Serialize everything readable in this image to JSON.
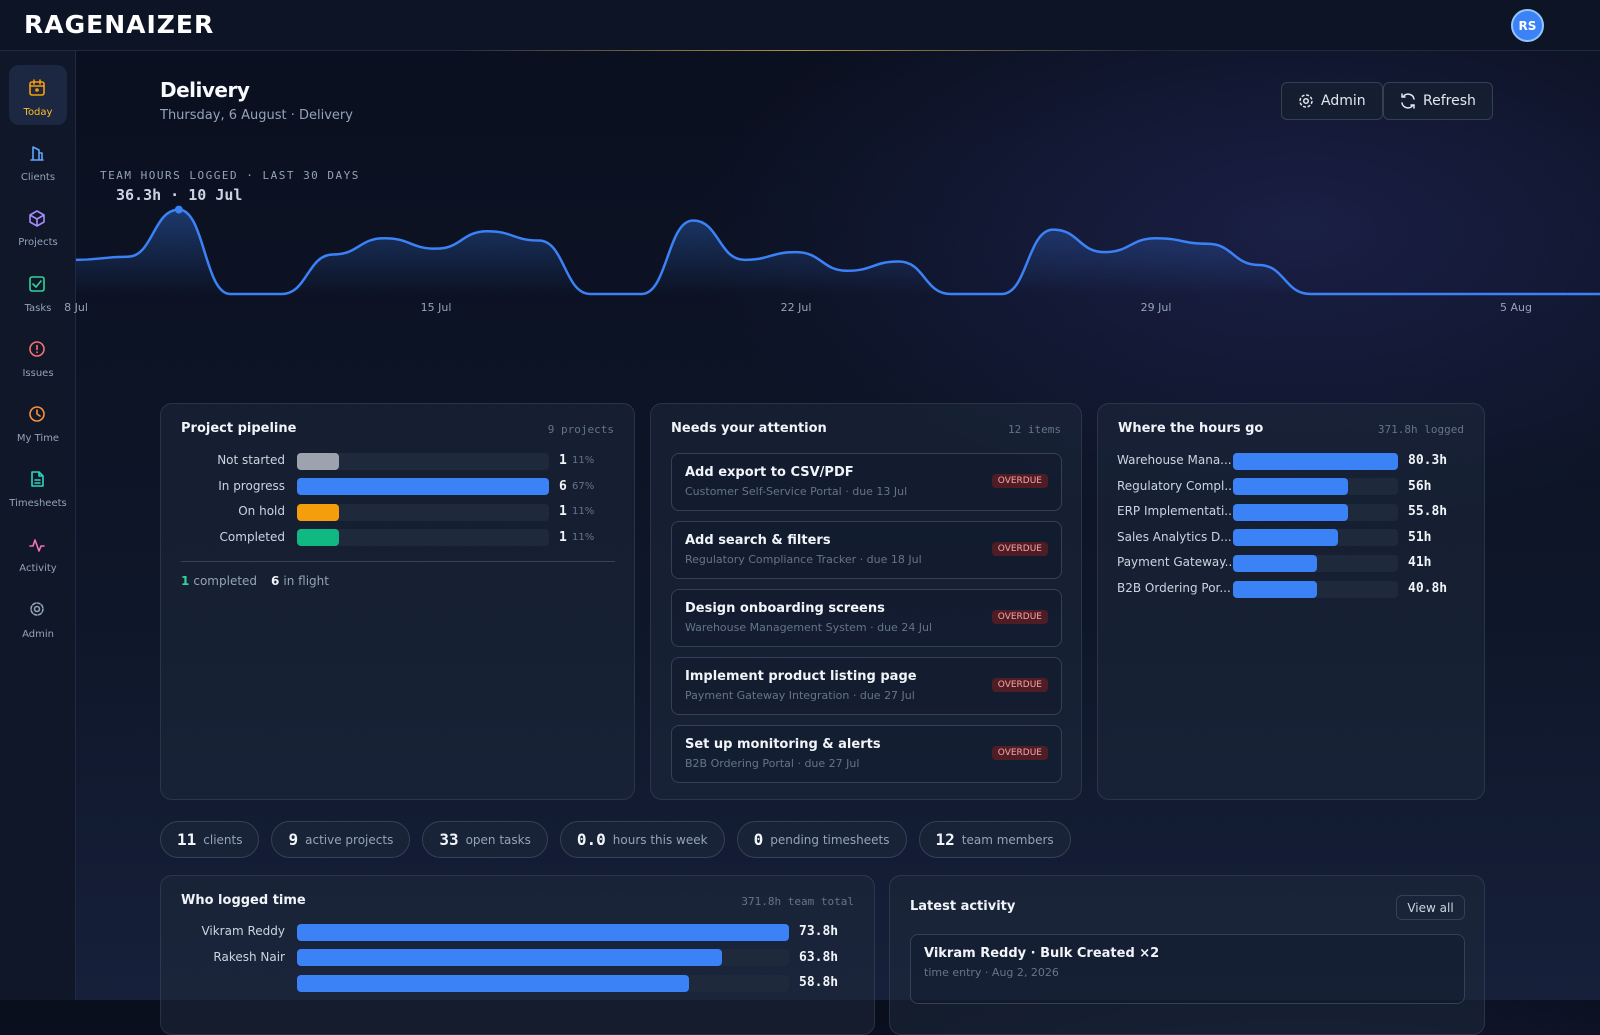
{
  "header": {
    "logo": "RAGENAIZER",
    "avatar": "RS"
  },
  "nav": [
    "Today",
    "Clients",
    "Projects",
    "Tasks",
    "Issues",
    "My Time",
    "Timesheets",
    "Activity",
    "Admin"
  ],
  "page": {
    "title": "Delivery",
    "subtitle": "Thursday, 6 August · Delivery",
    "buttons": [
      "Admin",
      "Refresh"
    ]
  },
  "hours_chart": {
    "type": "area",
    "title": "TEAM HOURS LOGGED · LAST 30 DAYS",
    "annotation": "36.3h · 10 Jul",
    "categories": [
      "8 Jul",
      null,
      null,
      null,
      null,
      null,
      null,
      "15 Jul",
      null,
      null,
      null,
      null,
      null,
      null,
      "22 Jul",
      null,
      null,
      null,
      null,
      null,
      null,
      "29 Jul",
      null,
      null,
      null,
      null,
      null,
      null,
      "5 Aug",
      null
    ],
    "values": [
      14.7,
      16,
      36.3,
      0,
      0,
      17,
      24,
      19.5,
      27,
      23,
      0,
      0,
      31.6,
      14.7,
      18,
      10,
      14,
      0,
      0,
      27.7,
      18,
      24,
      21.6,
      12.5,
      0,
      0,
      0,
      0,
      0,
      0
    ],
    "ylim": [
      0,
      40
    ],
    "color": "#3b82f6"
  },
  "pipeline": {
    "title": "Project pipeline",
    "meta": "9 projects",
    "categories": [
      "Not started",
      "In progress",
      "On hold",
      "Completed"
    ],
    "values": [
      1,
      6,
      1,
      1
    ],
    "colors": [
      "#9ca3af",
      "#3b82f6",
      "#f59e0b",
      "#10b981"
    ],
    "percents": [
      11,
      67,
      11,
      11
    ],
    "percent_labels": [
      "11%",
      "67%",
      "11%",
      "11%"
    ],
    "summary": [
      {
        "value": 1,
        "label": "completed"
      },
      {
        "value": 6,
        "label": "in flight"
      }
    ]
  },
  "attention": {
    "title": "Needs your attention",
    "meta": "12 items",
    "items": [
      {
        "title": "Add export to CSV/PDF",
        "subtitle": "Customer Self-Service Portal · due 13 Jul",
        "badge": "OVERDUE"
      },
      {
        "title": "Add search & filters",
        "subtitle": "Regulatory Compliance Tracker · due 18 Jul",
        "badge": "OVERDUE"
      },
      {
        "title": "Design onboarding screens",
        "subtitle": "Warehouse Management System · due 24 Jul",
        "badge": "OVERDUE"
      },
      {
        "title": "Implement product listing page",
        "subtitle": "Payment Gateway Integration · due 27 Jul",
        "badge": "OVERDUE"
      },
      {
        "title": "Set up monitoring & alerts",
        "subtitle": "B2B Ordering Portal · due 27 Jul",
        "badge": "OVERDUE"
      }
    ]
  },
  "hours_by_project": {
    "title": "Where the hours go",
    "meta": "371.8h logged",
    "categories": [
      "Warehouse Mana...",
      "Regulatory Compl...",
      "ERP Implementati...",
      "Sales Analytics D...",
      "Payment Gateway...",
      "B2B Ordering Por..."
    ],
    "values": [
      80.3,
      56,
      55.8,
      51,
      41,
      40.8
    ],
    "value_labels": [
      "80.3h",
      "56h",
      "55.8h",
      "51h",
      "41h",
      "40.8h"
    ],
    "color": "#3b82f6"
  },
  "stats": [
    {
      "value": 11,
      "label": "clients"
    },
    {
      "value": 9,
      "label": "active projects"
    },
    {
      "value": 33,
      "label": "open tasks"
    },
    {
      "value": 0,
      "value_label": "0.0",
      "label": "hours this week"
    },
    {
      "value": 0,
      "label": "pending timesheets"
    },
    {
      "value": 12,
      "label": "team members"
    }
  ],
  "team_hours": {
    "title": "Who logged time",
    "meta": "371.8h team total",
    "categories": [
      "Vikram Reddy",
      "Rakesh Nair",
      null
    ],
    "values": [
      73.8,
      63.8,
      58.8
    ],
    "value_labels": [
      "73.8h",
      "63.8h",
      "58.8h"
    ],
    "color": "#3b82f6"
  },
  "activity": {
    "title": "Latest activity",
    "button": "View all",
    "items": [
      {
        "title": "Vikram Reddy · Bulk Created ×2",
        "subtitle": "time entry · Aug 2, 2026"
      }
    ]
  }
}
